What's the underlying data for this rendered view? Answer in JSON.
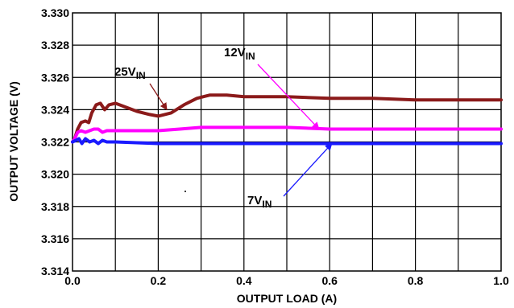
{
  "chart_data": {
    "type": "line",
    "xlabel": "OUTPUT LOAD (A)",
    "ylabel": "OUTPUT VOLTAGE (V)",
    "xlim": [
      0,
      1.0
    ],
    "ylim": [
      3.314,
      3.33
    ],
    "x_ticks": [
      "0.0",
      "0.2",
      "0.4",
      "0.6",
      "0.8",
      "1.0"
    ],
    "y_ticks": [
      "3.314",
      "3.316",
      "3.318",
      "3.320",
      "3.322",
      "3.324",
      "3.326",
      "3.328",
      "3.330"
    ],
    "grid": true,
    "series": [
      {
        "name": "25V",
        "name_sub": "IN",
        "color": "#8b1a1a",
        "points": [
          [
            0.0,
            3.322
          ],
          [
            0.005,
            3.3222
          ],
          [
            0.012,
            3.3228
          ],
          [
            0.02,
            3.3232
          ],
          [
            0.03,
            3.3233
          ],
          [
            0.038,
            3.3232
          ],
          [
            0.045,
            3.3238
          ],
          [
            0.055,
            3.3243
          ],
          [
            0.065,
            3.3244
          ],
          [
            0.075,
            3.324
          ],
          [
            0.085,
            3.3243
          ],
          [
            0.1,
            3.3244
          ],
          [
            0.12,
            3.3242
          ],
          [
            0.15,
            3.3239
          ],
          [
            0.18,
            3.3237
          ],
          [
            0.2,
            3.3236
          ],
          [
            0.23,
            3.3238
          ],
          [
            0.26,
            3.3243
          ],
          [
            0.29,
            3.3247
          ],
          [
            0.32,
            3.3249
          ],
          [
            0.36,
            3.3249
          ],
          [
            0.4,
            3.3248
          ],
          [
            0.5,
            3.3248
          ],
          [
            0.6,
            3.3247
          ],
          [
            0.7,
            3.3247
          ],
          [
            0.8,
            3.3246
          ],
          [
            0.9,
            3.3246
          ],
          [
            1.0,
            3.3246
          ]
        ]
      },
      {
        "name": "12V",
        "name_sub": "IN",
        "color": "#ff00ff",
        "points": [
          [
            0.0,
            3.322
          ],
          [
            0.005,
            3.3222
          ],
          [
            0.012,
            3.3226
          ],
          [
            0.02,
            3.3227
          ],
          [
            0.03,
            3.3226
          ],
          [
            0.04,
            3.3227
          ],
          [
            0.05,
            3.3228
          ],
          [
            0.06,
            3.3228
          ],
          [
            0.07,
            3.3226
          ],
          [
            0.08,
            3.3227
          ],
          [
            0.1,
            3.3227
          ],
          [
            0.15,
            3.3227
          ],
          [
            0.2,
            3.3227
          ],
          [
            0.25,
            3.3228
          ],
          [
            0.3,
            3.3229
          ],
          [
            0.4,
            3.3229
          ],
          [
            0.5,
            3.3229
          ],
          [
            0.6,
            3.3228
          ],
          [
            0.7,
            3.3228
          ],
          [
            0.8,
            3.3228
          ],
          [
            0.9,
            3.3228
          ],
          [
            1.0,
            3.3228
          ]
        ]
      },
      {
        "name": "7V",
        "name_sub": "IN",
        "color": "#1a1aff",
        "points": [
          [
            0.0,
            3.322
          ],
          [
            0.008,
            3.3221
          ],
          [
            0.015,
            3.3222
          ],
          [
            0.022,
            3.3219
          ],
          [
            0.03,
            3.3222
          ],
          [
            0.04,
            3.322
          ],
          [
            0.05,
            3.3221
          ],
          [
            0.06,
            3.3219
          ],
          [
            0.07,
            3.3221
          ],
          [
            0.08,
            3.322
          ],
          [
            0.1,
            3.322
          ],
          [
            0.2,
            3.3219
          ],
          [
            0.3,
            3.3219
          ],
          [
            0.4,
            3.3219
          ],
          [
            0.5,
            3.3219
          ],
          [
            0.6,
            3.3219
          ],
          [
            0.7,
            3.3219
          ],
          [
            0.8,
            3.3219
          ],
          [
            0.9,
            3.3219
          ],
          [
            1.0,
            3.3219
          ]
        ]
      }
    ],
    "annotations": [
      {
        "text": "25V",
        "sub": "IN",
        "series": 0,
        "target": [
          0.22,
          3.324
        ]
      },
      {
        "text": "12V",
        "sub": "IN",
        "series": 1,
        "target": [
          0.575,
          3.3228
        ]
      },
      {
        "text": "7V",
        "sub": "IN",
        "series": 2,
        "target": [
          0.605,
          3.3219
        ]
      }
    ]
  }
}
